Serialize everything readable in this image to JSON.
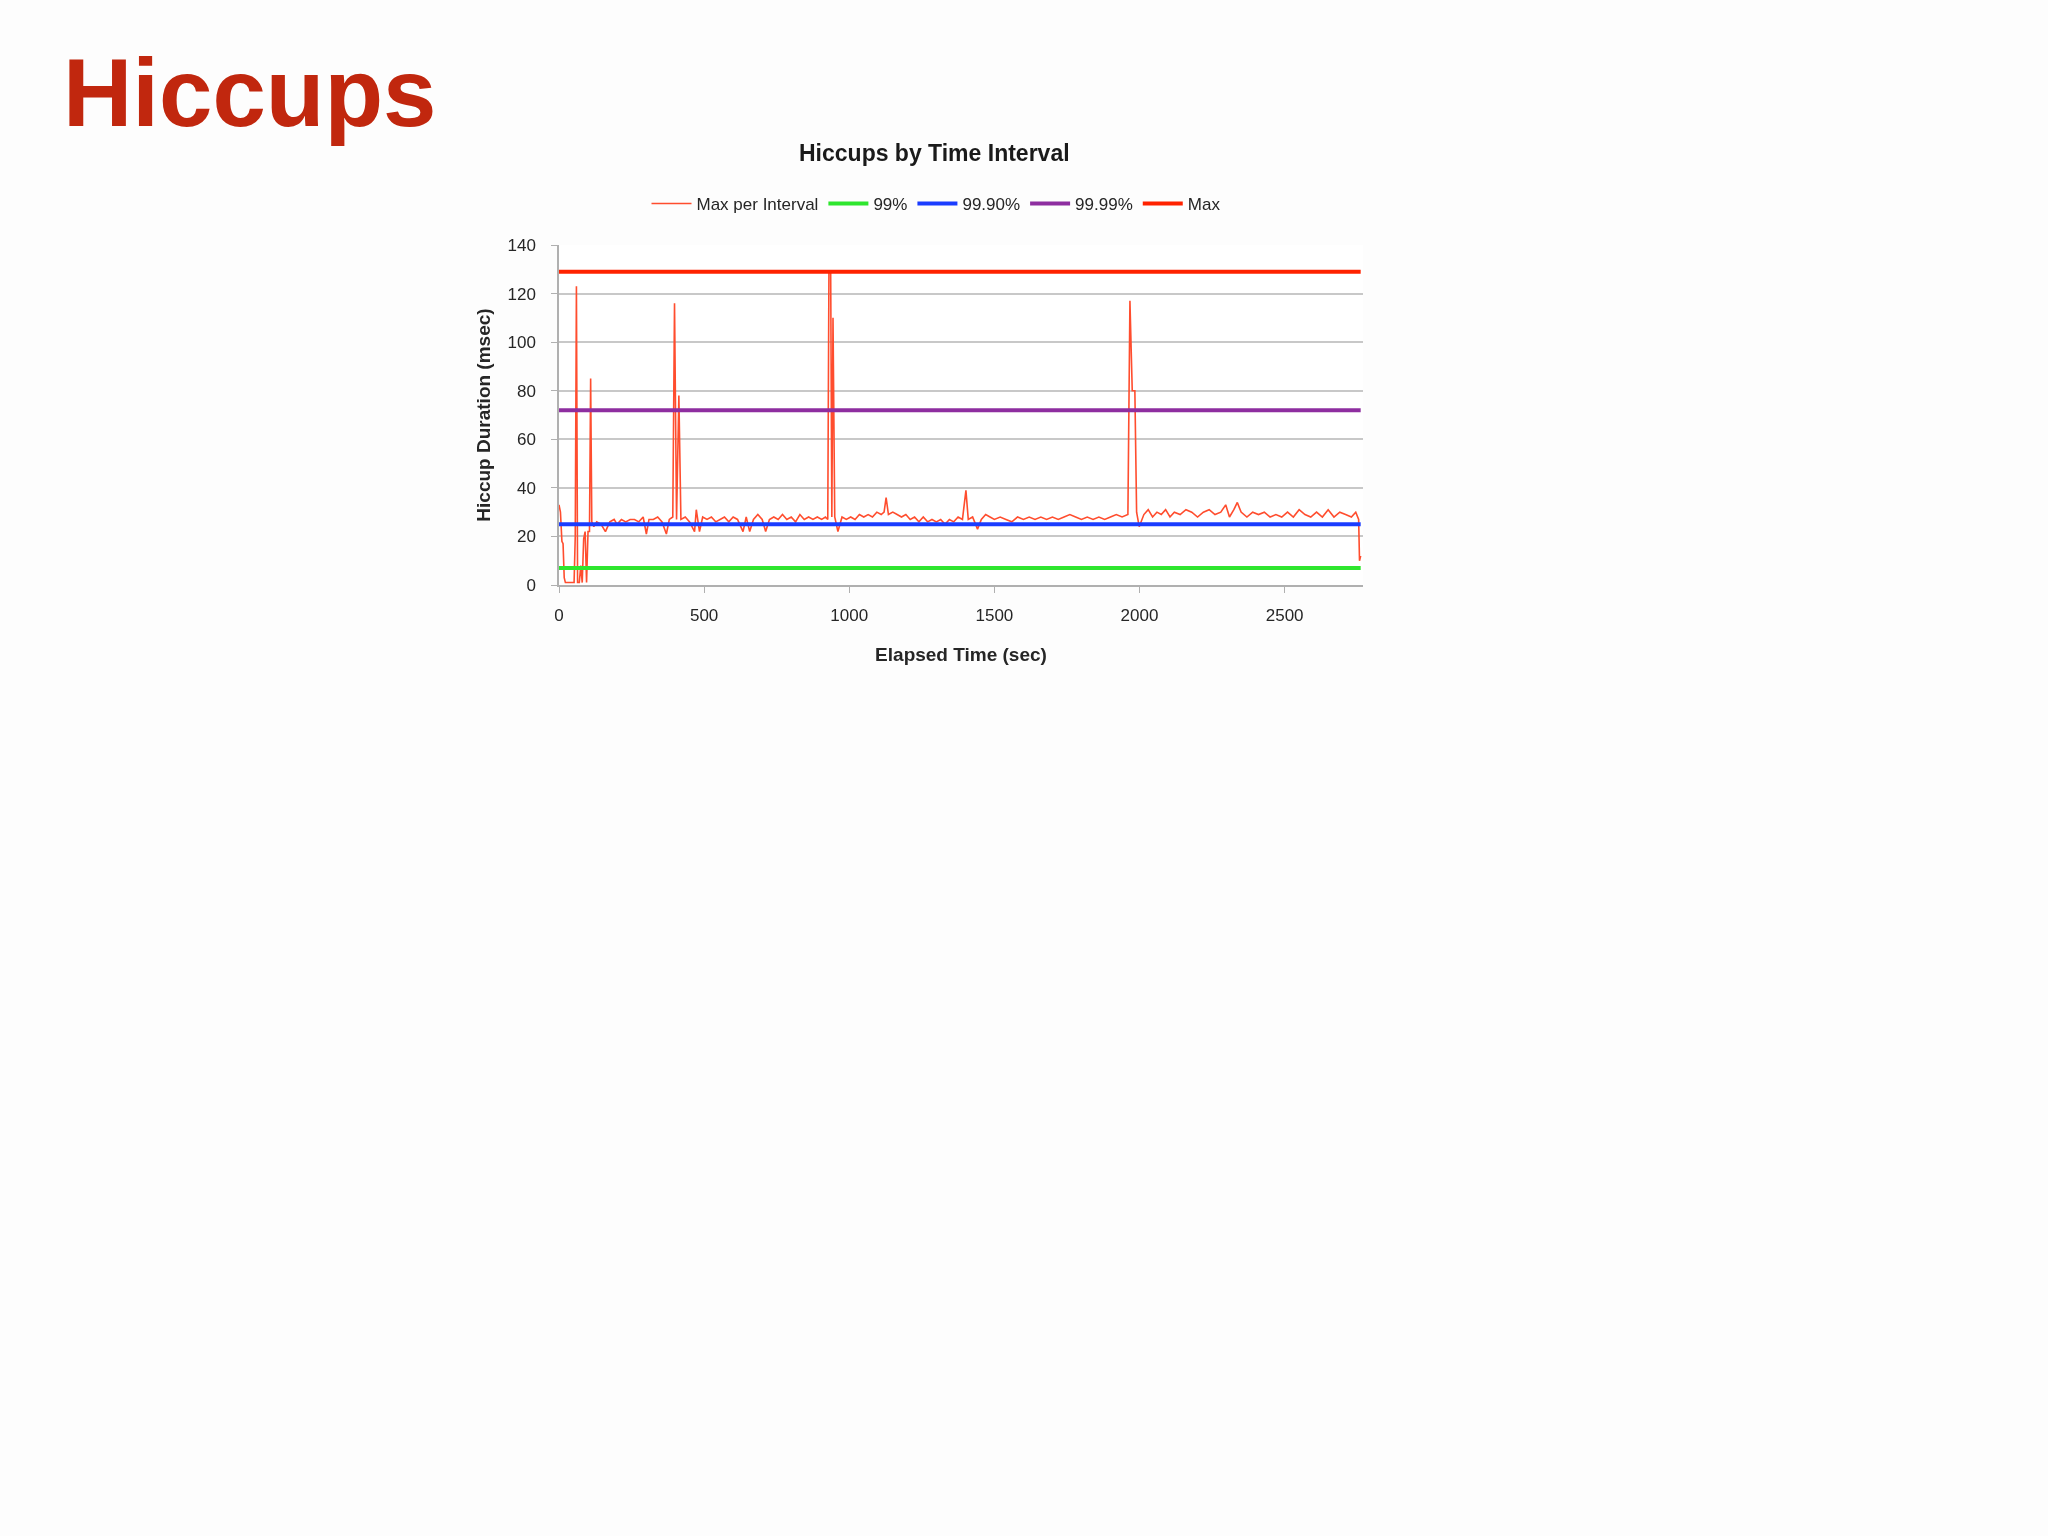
{
  "chart_data": {
    "type": "line",
    "title": "Hiccups",
    "subtitle": "Hiccups by Time Interval",
    "xlabel": "Elapsed Time (sec)",
    "ylabel": "Hiccup Duration (msec)",
    "xlim": [
      0,
      2770
    ],
    "xticks": [
      0,
      500,
      1000,
      1500,
      2000,
      2500
    ],
    "ylim": [
      0,
      140
    ],
    "yticks": [
      0,
      20,
      40,
      60,
      80,
      100,
      120,
      140
    ],
    "grid": "y",
    "legend": "top",
    "x": [
      0,
      5,
      10,
      14,
      18,
      22,
      30,
      40,
      52,
      56,
      60,
      64,
      70,
      75,
      80,
      85,
      90,
      95,
      100,
      105,
      109,
      113,
      120,
      130,
      145,
      160,
      175,
      190,
      200,
      215,
      230,
      245,
      260,
      275,
      290,
      301,
      310,
      325,
      340,
      355,
      370,
      380,
      392,
      398,
      405,
      413,
      420,
      435,
      450,
      467,
      473,
      484,
      495,
      510,
      525,
      540,
      555,
      570,
      585,
      600,
      615,
      634,
      645,
      657,
      670,
      685,
      700,
      712,
      725,
      740,
      755,
      770,
      785,
      800,
      815,
      830,
      845,
      860,
      875,
      890,
      905,
      918,
      926,
      930,
      936,
      940,
      944,
      950,
      961,
      975,
      990,
      1005,
      1020,
      1035,
      1050,
      1065,
      1080,
      1095,
      1110,
      1120,
      1127,
      1135,
      1150,
      1165,
      1180,
      1195,
      1210,
      1225,
      1240,
      1255,
      1270,
      1285,
      1300,
      1315,
      1330,
      1345,
      1360,
      1375,
      1390,
      1402,
      1410,
      1425,
      1442,
      1455,
      1470,
      1485,
      1500,
      1520,
      1540,
      1560,
      1580,
      1600,
      1620,
      1640,
      1660,
      1680,
      1700,
      1720,
      1740,
      1760,
      1780,
      1800,
      1820,
      1840,
      1860,
      1880,
      1900,
      1920,
      1940,
      1960,
      1967,
      1975,
      1984,
      1990,
      1999,
      2015,
      2030,
      2045,
      2060,
      2075,
      2090,
      2105,
      2120,
      2140,
      2160,
      2180,
      2200,
      2220,
      2240,
      2260,
      2280,
      2297,
      2310,
      2325,
      2337,
      2350,
      2370,
      2390,
      2410,
      2430,
      2450,
      2470,
      2490,
      2510,
      2530,
      2550,
      2570,
      2590,
      2610,
      2630,
      2650,
      2670,
      2690,
      2710,
      2730,
      2745,
      2755,
      2758,
      2762
    ],
    "series": [
      {
        "name": "Max per Interval",
        "color": "#ff4d2e",
        "values": [
          33,
          30,
          18,
          17,
          3,
          1,
          1,
          1,
          1,
          20,
          123,
          1,
          1,
          8,
          1,
          19,
          22,
          1,
          22,
          22,
          85,
          26,
          24,
          26,
          25,
          22,
          26,
          27,
          25,
          27,
          26,
          27,
          27,
          26,
          28,
          21,
          27,
          27,
          28,
          26,
          21,
          27,
          28,
          116,
          27,
          78,
          27,
          28,
          26,
          22,
          31,
          22,
          28,
          27,
          28,
          26,
          27,
          28,
          26,
          28,
          27,
          22,
          28,
          22,
          27,
          29,
          27,
          22,
          27,
          28,
          27,
          29,
          27,
          28,
          26,
          29,
          27,
          28,
          27,
          28,
          27,
          28,
          27,
          129,
          129,
          28,
          110,
          28,
          22,
          28,
          27,
          28,
          27,
          29,
          28,
          29,
          28,
          30,
          29,
          30,
          36,
          29,
          30,
          29,
          28,
          29,
          27,
          28,
          26,
          28,
          26,
          27,
          26,
          27,
          25,
          27,
          26,
          28,
          27,
          39,
          27,
          28,
          23,
          27,
          29,
          28,
          27,
          28,
          27,
          26,
          28,
          27,
          28,
          27,
          28,
          27,
          28,
          27,
          28,
          29,
          28,
          27,
          28,
          27,
          28,
          27,
          28,
          29,
          28,
          29,
          117,
          80,
          80,
          30,
          24,
          29,
          31,
          28,
          30,
          29,
          31,
          28,
          30,
          29,
          31,
          30,
          28,
          30,
          31,
          29,
          30,
          33,
          28,
          31,
          34,
          30,
          28,
          30,
          29,
          30,
          28,
          29,
          28,
          30,
          28,
          31,
          29,
          28,
          30,
          28,
          31,
          28,
          30,
          29,
          28,
          30,
          27,
          10,
          12
        ]
      },
      {
        "name": "99%",
        "color": "#2ee62e",
        "values": [
          7,
          7,
          7,
          7,
          7,
          7,
          7,
          7,
          7,
          7,
          7,
          7,
          7,
          7,
          7,
          7,
          7,
          7,
          7,
          7,
          7,
          7,
          7,
          7,
          7,
          7,
          7,
          7,
          7,
          7,
          7,
          7,
          7,
          7,
          7,
          7,
          7,
          7,
          7,
          7,
          7,
          7,
          7,
          7,
          7,
          7,
          7,
          7,
          7,
          7,
          7,
          7,
          7,
          7,
          7,
          7,
          7,
          7,
          7,
          7,
          7,
          7,
          7,
          7,
          7,
          7,
          7,
          7,
          7,
          7,
          7,
          7,
          7,
          7,
          7,
          7,
          7,
          7,
          7,
          7,
          7,
          7,
          7,
          7,
          7,
          7,
          7,
          7,
          7,
          7,
          7,
          7,
          7,
          7,
          7,
          7,
          7,
          7,
          7,
          7,
          7,
          7,
          7,
          7,
          7,
          7,
          7,
          7,
          7,
          7,
          7,
          7,
          7,
          7,
          7,
          7,
          7,
          7,
          7,
          7,
          7,
          7,
          7,
          7,
          7,
          7,
          7,
          7,
          7,
          7,
          7,
          7,
          7,
          7,
          7,
          7,
          7,
          7,
          7,
          7,
          7,
          7,
          7,
          7,
          7,
          7,
          7,
          7,
          7,
          7,
          7,
          7,
          7,
          7,
          7,
          7,
          7,
          7,
          7,
          7,
          7,
          7,
          7,
          7,
          7,
          7,
          7,
          7,
          7,
          7,
          7,
          7,
          7,
          7,
          7,
          7,
          7,
          7,
          7,
          7,
          7,
          7,
          7,
          7,
          7,
          7,
          7,
          7,
          7,
          7,
          7,
          7,
          7,
          7,
          7,
          7,
          7,
          7,
          7
        ]
      },
      {
        "name": "99.90%",
        "color": "#1a3cff",
        "values": [
          25,
          25,
          25,
          25,
          25,
          25,
          25,
          25,
          25,
          25,
          25,
          25,
          25,
          25,
          25,
          25,
          25,
          25,
          25,
          25,
          25,
          25,
          25,
          25,
          25,
          25,
          25,
          25,
          25,
          25,
          25,
          25,
          25,
          25,
          25,
          25,
          25,
          25,
          25,
          25,
          25,
          25,
          25,
          25,
          25,
          25,
          25,
          25,
          25,
          25,
          25,
          25,
          25,
          25,
          25,
          25,
          25,
          25,
          25,
          25,
          25,
          25,
          25,
          25,
          25,
          25,
          25,
          25,
          25,
          25,
          25,
          25,
          25,
          25,
          25,
          25,
          25,
          25,
          25,
          25,
          25,
          25,
          25,
          25,
          25,
          25,
          25,
          25,
          25,
          25,
          25,
          25,
          25,
          25,
          25,
          25,
          25,
          25,
          25,
          25,
          25,
          25,
          25,
          25,
          25,
          25,
          25,
          25,
          25,
          25,
          25,
          25,
          25,
          25,
          25,
          25,
          25,
          25,
          25,
          25,
          25,
          25,
          25,
          25,
          25,
          25,
          25,
          25,
          25,
          25,
          25,
          25,
          25,
          25,
          25,
          25,
          25,
          25,
          25,
          25,
          25,
          25,
          25,
          25,
          25,
          25,
          25,
          25,
          25,
          25,
          25,
          25,
          25,
          25,
          25,
          25,
          25,
          25,
          25,
          25,
          25,
          25,
          25,
          25,
          25,
          25,
          25,
          25,
          25,
          25,
          25,
          25,
          25,
          25,
          25,
          25,
          25,
          25,
          25,
          25,
          25,
          25,
          25,
          25,
          25,
          25,
          25,
          25,
          25,
          25,
          25,
          25,
          25,
          25,
          25,
          25,
          25,
          25,
          25
        ]
      },
      {
        "name": "99.99%",
        "color": "#8e2ea0",
        "values": [
          72,
          72,
          72,
          72,
          72,
          72,
          72,
          72,
          72,
          72,
          72,
          72,
          72,
          72,
          72,
          72,
          72,
          72,
          72,
          72,
          72,
          72,
          72,
          72,
          72,
          72,
          72,
          72,
          72,
          72,
          72,
          72,
          72,
          72,
          72,
          72,
          72,
          72,
          72,
          72,
          72,
          72,
          72,
          72,
          72,
          72,
          72,
          72,
          72,
          72,
          72,
          72,
          72,
          72,
          72,
          72,
          72,
          72,
          72,
          72,
          72,
          72,
          72,
          72,
          72,
          72,
          72,
          72,
          72,
          72,
          72,
          72,
          72,
          72,
          72,
          72,
          72,
          72,
          72,
          72,
          72,
          72,
          72,
          72,
          72,
          72,
          72,
          72,
          72,
          72,
          72,
          72,
          72,
          72,
          72,
          72,
          72,
          72,
          72,
          72,
          72,
          72,
          72,
          72,
          72,
          72,
          72,
          72,
          72,
          72,
          72,
          72,
          72,
          72,
          72,
          72,
          72,
          72,
          72,
          72,
          72,
          72,
          72,
          72,
          72,
          72,
          72,
          72,
          72,
          72,
          72,
          72,
          72,
          72,
          72,
          72,
          72,
          72,
          72,
          72,
          72,
          72,
          72,
          72,
          72,
          72,
          72,
          72,
          72,
          72,
          72,
          72,
          72,
          72,
          72,
          72,
          72,
          72,
          72,
          72,
          72,
          72,
          72,
          72,
          72,
          72,
          72,
          72,
          72,
          72,
          72,
          72,
          72,
          72,
          72,
          72,
          72,
          72,
          72,
          72,
          72,
          72,
          72,
          72,
          72,
          72,
          72,
          72,
          72,
          72,
          72,
          72,
          72,
          72,
          72,
          72,
          72,
          72,
          72
        ]
      },
      {
        "name": "Max",
        "color": "#ff2200",
        "values": [
          129,
          129,
          129,
          129,
          129,
          129,
          129,
          129,
          129,
          129,
          129,
          129,
          129,
          129,
          129,
          129,
          129,
          129,
          129,
          129,
          129,
          129,
          129,
          129,
          129,
          129,
          129,
          129,
          129,
          129,
          129,
          129,
          129,
          129,
          129,
          129,
          129,
          129,
          129,
          129,
          129,
          129,
          129,
          129,
          129,
          129,
          129,
          129,
          129,
          129,
          129,
          129,
          129,
          129,
          129,
          129,
          129,
          129,
          129,
          129,
          129,
          129,
          129,
          129,
          129,
          129,
          129,
          129,
          129,
          129,
          129,
          129,
          129,
          129,
          129,
          129,
          129,
          129,
          129,
          129,
          129,
          129,
          129,
          129,
          129,
          129,
          129,
          129,
          129,
          129,
          129,
          129,
          129,
          129,
          129,
          129,
          129,
          129,
          129,
          129,
          129,
          129,
          129,
          129,
          129,
          129,
          129,
          129,
          129,
          129,
          129,
          129,
          129,
          129,
          129,
          129,
          129,
          129,
          129,
          129,
          129,
          129,
          129,
          129,
          129,
          129,
          129,
          129,
          129,
          129,
          129,
          129,
          129,
          129,
          129,
          129,
          129,
          129,
          129,
          129,
          129,
          129,
          129,
          129,
          129,
          129,
          129,
          129,
          129,
          129,
          129,
          129,
          129,
          129,
          129,
          129,
          129,
          129,
          129,
          129,
          129,
          129,
          129,
          129,
          129,
          129,
          129,
          129,
          129,
          129,
          129,
          129,
          129,
          129,
          129,
          129,
          129,
          129,
          129,
          129,
          129,
          129,
          129,
          129,
          129,
          129,
          129,
          129,
          129,
          129,
          129,
          129,
          129,
          129,
          129,
          129,
          129,
          129,
          129
        ]
      }
    ]
  }
}
